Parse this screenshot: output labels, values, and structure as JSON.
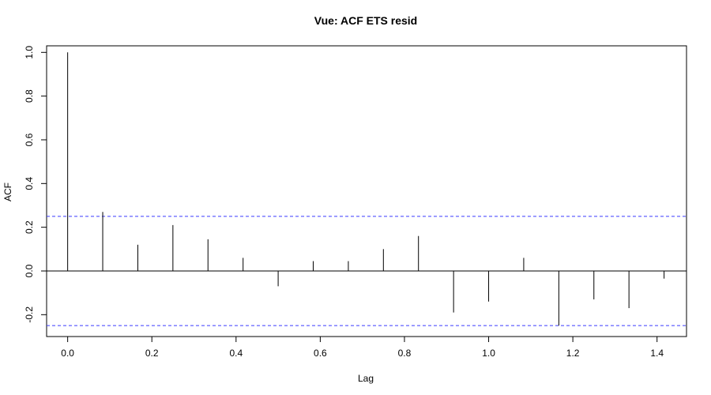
{
  "chart_data": {
    "type": "bar",
    "title": "Vue: ACF ETS resid",
    "xlabel": "Lag",
    "ylabel": "ACF",
    "xlim": [
      -0.05,
      1.47
    ],
    "ylim": [
      -0.3,
      1.03
    ],
    "xticks": [
      "0.0",
      "0.2",
      "0.4",
      "0.6",
      "0.8",
      "1.0",
      "1.2",
      "1.4"
    ],
    "yticks": [
      "-0.2",
      "0.0",
      "0.2",
      "0.4",
      "0.6",
      "0.8",
      "1.0"
    ],
    "confidence_bounds": [
      0.25,
      -0.25
    ],
    "grid": false,
    "series": [
      {
        "x": [
          0.0,
          0.0833,
          0.1667,
          0.25,
          0.3333,
          0.4167,
          0.5,
          0.5833,
          0.6667,
          0.75,
          0.8333,
          0.9167,
          1.0,
          1.0833,
          1.1667,
          1.25,
          1.3333,
          1.4167
        ],
        "values": [
          1.0,
          0.27,
          0.12,
          0.21,
          0.145,
          0.06,
          -0.07,
          0.045,
          0.045,
          0.1,
          0.16,
          -0.19,
          -0.14,
          0.06,
          -0.25,
          -0.13,
          -0.17,
          -0.035
        ]
      }
    ],
    "colors": {
      "bars": "#000000",
      "bounds": "#3b3bff",
      "zero_line": "#000000",
      "frame": "#000000"
    }
  }
}
